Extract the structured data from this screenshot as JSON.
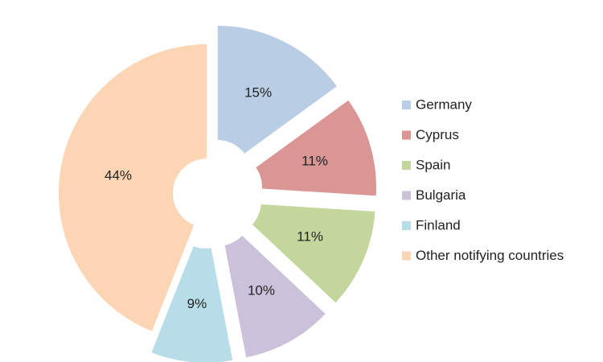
{
  "chart_data": {
    "type": "donut",
    "categories": [
      "Germany",
      "Cyprus",
      "Spain",
      "Bulgaria",
      "Finland",
      "Other notifying countries"
    ],
    "values": [
      15,
      11,
      11,
      10,
      9,
      44
    ],
    "value_labels": [
      "15%",
      "11%",
      "11%",
      "10%",
      "9%",
      "44%"
    ],
    "colors": [
      "#b9cde5",
      "#d99694",
      "#c3d69b",
      "#ccc1da",
      "#b7dee8",
      "#fcd5b5"
    ],
    "legend": "right"
  }
}
